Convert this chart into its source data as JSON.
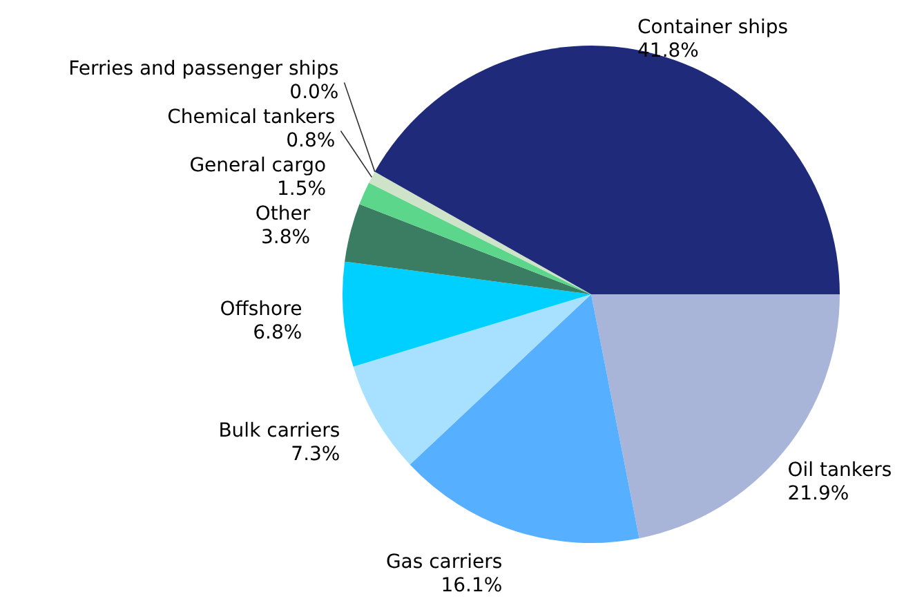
{
  "chart_data": {
    "type": "pie",
    "categories": [
      "Oil tankers",
      "Gas carriers",
      "Bulk carriers",
      "Offshore",
      "Other",
      "General cargo",
      "Chemical tankers",
      "Ferries and passenger ships",
      "Container ships"
    ],
    "values": [
      21.9,
      16.1,
      7.3,
      6.8,
      3.8,
      1.5,
      0.8,
      0.0,
      41.8
    ],
    "value_labels": [
      "21.9%",
      "16.1%",
      "7.3%",
      "6.8%",
      "3.8%",
      "1.5%",
      "0.8%",
      "0.0%",
      "41.8%"
    ],
    "colors": [
      "#a8b4d8",
      "#57b0ff",
      "#a8e0ff",
      "#00d0ff",
      "#3a7d62",
      "#5cd68a",
      "#cfe3c8",
      "#ffffff",
      "#202a7a"
    ]
  }
}
